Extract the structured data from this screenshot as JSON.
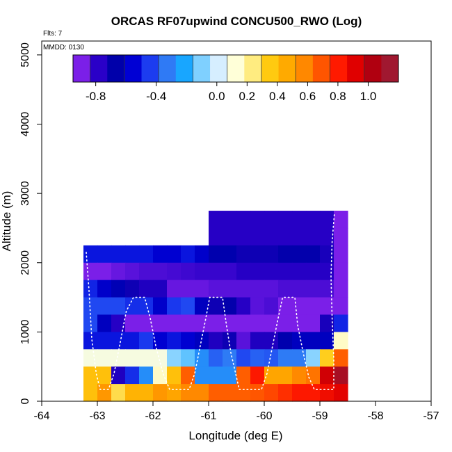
{
  "chart_data": {
    "type": "heatmap",
    "title": "ORCAS RF07upwind CONCU500_RWO (Log)",
    "annotations": {
      "flights": "Flts: 7",
      "date": "MMDD: 0130"
    },
    "xlabel": "Longitude (deg E)",
    "ylabel": "Altitude (m)",
    "xlim": [
      -64,
      -57
    ],
    "ylim": [
      0,
      5200
    ],
    "x_ticks": [
      -64,
      -63,
      -62,
      -61,
      -60,
      -59,
      -58,
      -57
    ],
    "x_tick_labels": [
      "-64",
      "-63",
      "-62",
      "-61",
      "-60",
      "-59",
      "-58",
      "-57"
    ],
    "y_ticks": [
      0,
      1000,
      2000,
      3000,
      4000,
      5000
    ],
    "y_tick_labels": [
      "0",
      "1000",
      "2000",
      "3000",
      "4000",
      "5000"
    ],
    "grid": false,
    "colorbar": {
      "placement": "top",
      "min": -0.95,
      "max": 1.2,
      "ticks": [
        -0.8,
        -0.4,
        0.0,
        0.2,
        0.4,
        0.6,
        0.8,
        1.0
      ],
      "tick_labels": [
        "-0.8",
        "-0.4",
        "0.0",
        "0.2",
        "0.4",
        "0.6",
        "0.8",
        "1.0"
      ],
      "colors": [
        "#7b1fe8",
        "#2a00c8",
        "#0000aa",
        "#0000d4",
        "#1c3cf0",
        "#2f7af5",
        "#18a6ff",
        "#7fd0ff",
        "#d6eeff",
        "#ffffd8",
        "#ffec80",
        "#ffca10",
        "#ffaa00",
        "#ff8800",
        "#ff5500",
        "#ff1a00",
        "#e00000",
        "#b00010",
        "#a01830"
      ]
    },
    "cell_size": {
      "lon": 0.25,
      "alt": 250
    },
    "columns_lon_start": [
      -63.25,
      -63.0,
      -62.75,
      -62.5,
      -62.25,
      -62.0,
      -61.75,
      -61.5,
      -61.25,
      -61.0,
      -60.75,
      -60.5,
      -60.25,
      -60.0,
      -59.75,
      -59.5,
      -59.25,
      -59.0,
      -58.75
    ],
    "rows_alt_start": [
      2500,
      2250,
      2000,
      1750,
      1500,
      1250,
      1000,
      750,
      500,
      250,
      0
    ],
    "cells": [
      [
        null,
        null,
        null,
        null,
        null,
        null,
        null,
        null,
        null,
        -0.82,
        -0.82,
        -0.82,
        -0.82,
        -0.82,
        -0.82,
        -0.82,
        -0.82,
        -0.82,
        -0.95
      ],
      [
        null,
        null,
        null,
        null,
        null,
        null,
        null,
        null,
        null,
        -0.82,
        -0.82,
        -0.82,
        -0.82,
        -0.82,
        -0.82,
        -0.82,
        -0.82,
        -0.82,
        -0.95
      ],
      [
        -0.55,
        -0.55,
        -0.55,
        -0.55,
        -0.55,
        -0.6,
        -0.6,
        -0.55,
        -0.62,
        -0.7,
        -0.7,
        -0.75,
        -0.75,
        -0.75,
        -0.72,
        -0.72,
        -0.72,
        -0.78,
        -0.95
      ],
      [
        -0.95,
        -0.95,
        -0.92,
        -0.9,
        -0.88,
        -0.88,
        -0.87,
        -0.86,
        -0.85,
        -0.85,
        -0.85,
        -0.82,
        -0.82,
        -0.82,
        -0.82,
        -0.82,
        -0.82,
        -0.82,
        -0.95
      ],
      [
        -0.52,
        -0.62,
        -0.68,
        -0.75,
        -0.8,
        -0.8,
        -0.92,
        -0.92,
        -0.92,
        -0.9,
        -0.9,
        -0.9,
        -0.9,
        -0.9,
        -0.88,
        -0.88,
        -0.88,
        -0.88,
        -0.95
      ],
      [
        -0.45,
        -0.45,
        -0.45,
        -0.5,
        -0.5,
        -0.62,
        -0.48,
        -0.45,
        -0.65,
        -0.75,
        -0.72,
        -0.82,
        -0.9,
        -0.88,
        -0.95,
        -0.95,
        -0.95,
        -0.95,
        -0.95
      ],
      [
        -0.45,
        -0.65,
        -0.82,
        -0.95,
        -0.95,
        -0.95,
        -0.95,
        -0.95,
        -0.95,
        -0.95,
        -0.95,
        -0.95,
        -0.95,
        -0.95,
        -0.95,
        -0.95,
        -0.95,
        -0.78,
        -0.52
      ],
      [
        -0.55,
        -0.55,
        -0.55,
        -0.55,
        -0.48,
        -0.6,
        -0.55,
        -0.6,
        -0.65,
        -0.8,
        -0.75,
        -0.9,
        -0.8,
        -0.8,
        -0.7,
        -0.65,
        -0.65,
        -0.65,
        0.15
      ],
      [
        0.1,
        0.1,
        0.1,
        0.1,
        0.1,
        0.1,
        -0.1,
        -0.15,
        -0.3,
        -0.4,
        -0.35,
        -0.45,
        -0.4,
        -0.42,
        -0.35,
        -0.35,
        -0.1,
        0.35,
        0.7
      ],
      [
        0.4,
        0.4,
        -0.8,
        -0.5,
        -0.3,
        0.15,
        0.4,
        0.7,
        -0.3,
        -0.3,
        -0.3,
        0.7,
        0.85,
        0.5,
        0.5,
        0.6,
        0.65,
        1.0,
        1.15
      ],
      [
        0.4,
        0.55,
        0.3,
        0.45,
        0.45,
        0.55,
        0.5,
        0.6,
        0.6,
        0.7,
        0.7,
        0.7,
        0.72,
        0.75,
        0.8,
        0.85,
        0.85,
        0.9,
        0.95
      ]
    ],
    "tall_column": {
      "lon_start": -58.75,
      "alt_top": 2750,
      "value": -0.95
    },
    "flight_track": [
      [
        -63.2,
        2150
      ],
      [
        -63.15,
        1600
      ],
      [
        -63.1,
        900
      ],
      [
        -63.02,
        400
      ],
      [
        -62.95,
        170
      ],
      [
        -62.8,
        170
      ],
      [
        -62.7,
        400
      ],
      [
        -62.6,
        800
      ],
      [
        -62.48,
        1300
      ],
      [
        -62.35,
        1500
      ],
      [
        -62.15,
        1500
      ],
      [
        -62.05,
        1200
      ],
      [
        -61.95,
        800
      ],
      [
        -61.82,
        400
      ],
      [
        -61.7,
        170
      ],
      [
        -61.35,
        170
      ],
      [
        -61.25,
        400
      ],
      [
        -61.15,
        800
      ],
      [
        -61.05,
        1200
      ],
      [
        -60.98,
        1500
      ],
      [
        -60.75,
        1500
      ],
      [
        -60.68,
        1100
      ],
      [
        -60.6,
        700
      ],
      [
        -60.5,
        350
      ],
      [
        -60.45,
        170
      ],
      [
        -60.05,
        170
      ],
      [
        -59.95,
        400
      ],
      [
        -59.85,
        800
      ],
      [
        -59.75,
        1200
      ],
      [
        -59.67,
        1500
      ],
      [
        -59.45,
        1500
      ],
      [
        -59.4,
        1100
      ],
      [
        -59.3,
        700
      ],
      [
        -59.2,
        350
      ],
      [
        -59.1,
        170
      ],
      [
        -58.75,
        170
      ],
      [
        -58.75,
        600
      ],
      [
        -58.78,
        1200
      ],
      [
        -58.8,
        1800
      ],
      [
        -58.78,
        2300
      ],
      [
        -58.74,
        2700
      ]
    ]
  }
}
